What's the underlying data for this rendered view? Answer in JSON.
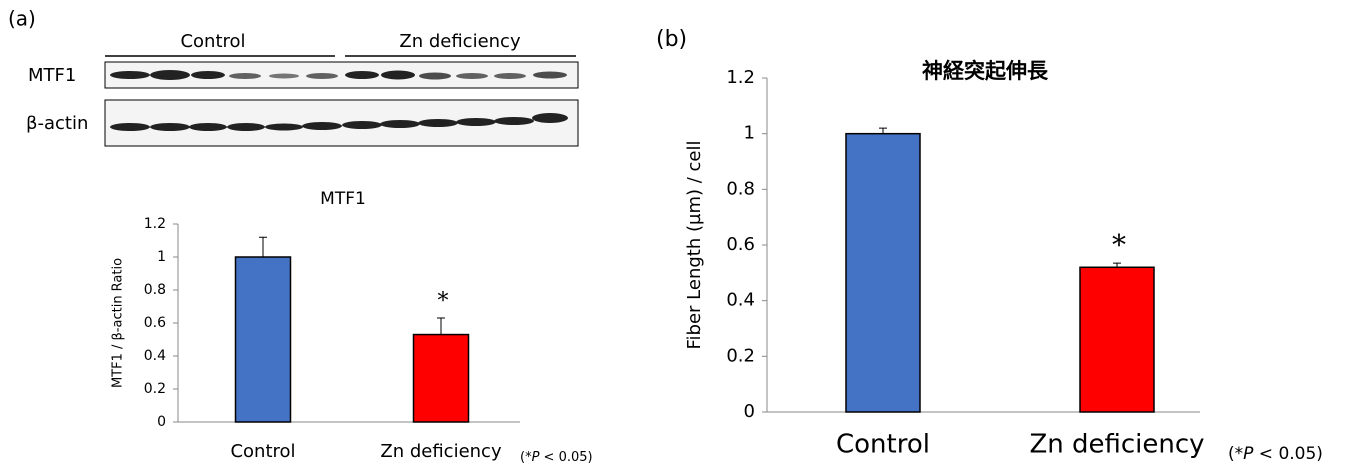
{
  "blot": {
    "group_labels": [
      "Control",
      "Zn deficiency"
    ],
    "row_labels": [
      "MTF1",
      "β-actin"
    ]
  },
  "chart_data": [
    {
      "type": "bar",
      "panel_label": "(a)",
      "title": "MTF1",
      "ylabel": "MTF1 / β-actin Ratio",
      "categories": [
        "Control",
        "Zn deficiency"
      ],
      "values": [
        1,
        0.53
      ],
      "errors": [
        0.12,
        0.1
      ],
      "colors": [
        "#4472c4",
        "#ff0000"
      ],
      "significance": [
        null,
        "*"
      ],
      "ylim": [
        0,
        1.2
      ],
      "yticks": [
        0,
        0.2,
        0.4,
        0.6,
        0.8,
        1,
        1.2
      ],
      "note": [
        "(*",
        "P",
        " < 0.05)"
      ]
    },
    {
      "type": "bar",
      "panel_label": "(b)",
      "title": "神経突起伸長",
      "ylabel": "Fiber Length (µm) / cell",
      "categories": [
        "Control",
        "Zn deficiency"
      ],
      "values": [
        1,
        0.52
      ],
      "errors": [
        0.02,
        0.015
      ],
      "colors": [
        "#4472c4",
        "#ff0000"
      ],
      "significance": [
        null,
        "*"
      ],
      "ylim": [
        0,
        1.2
      ],
      "yticks": [
        0,
        0.2,
        0.4,
        0.6,
        0.8,
        1,
        1.2
      ],
      "note": [
        "(*",
        "P",
        " < 0.05)"
      ]
    }
  ]
}
